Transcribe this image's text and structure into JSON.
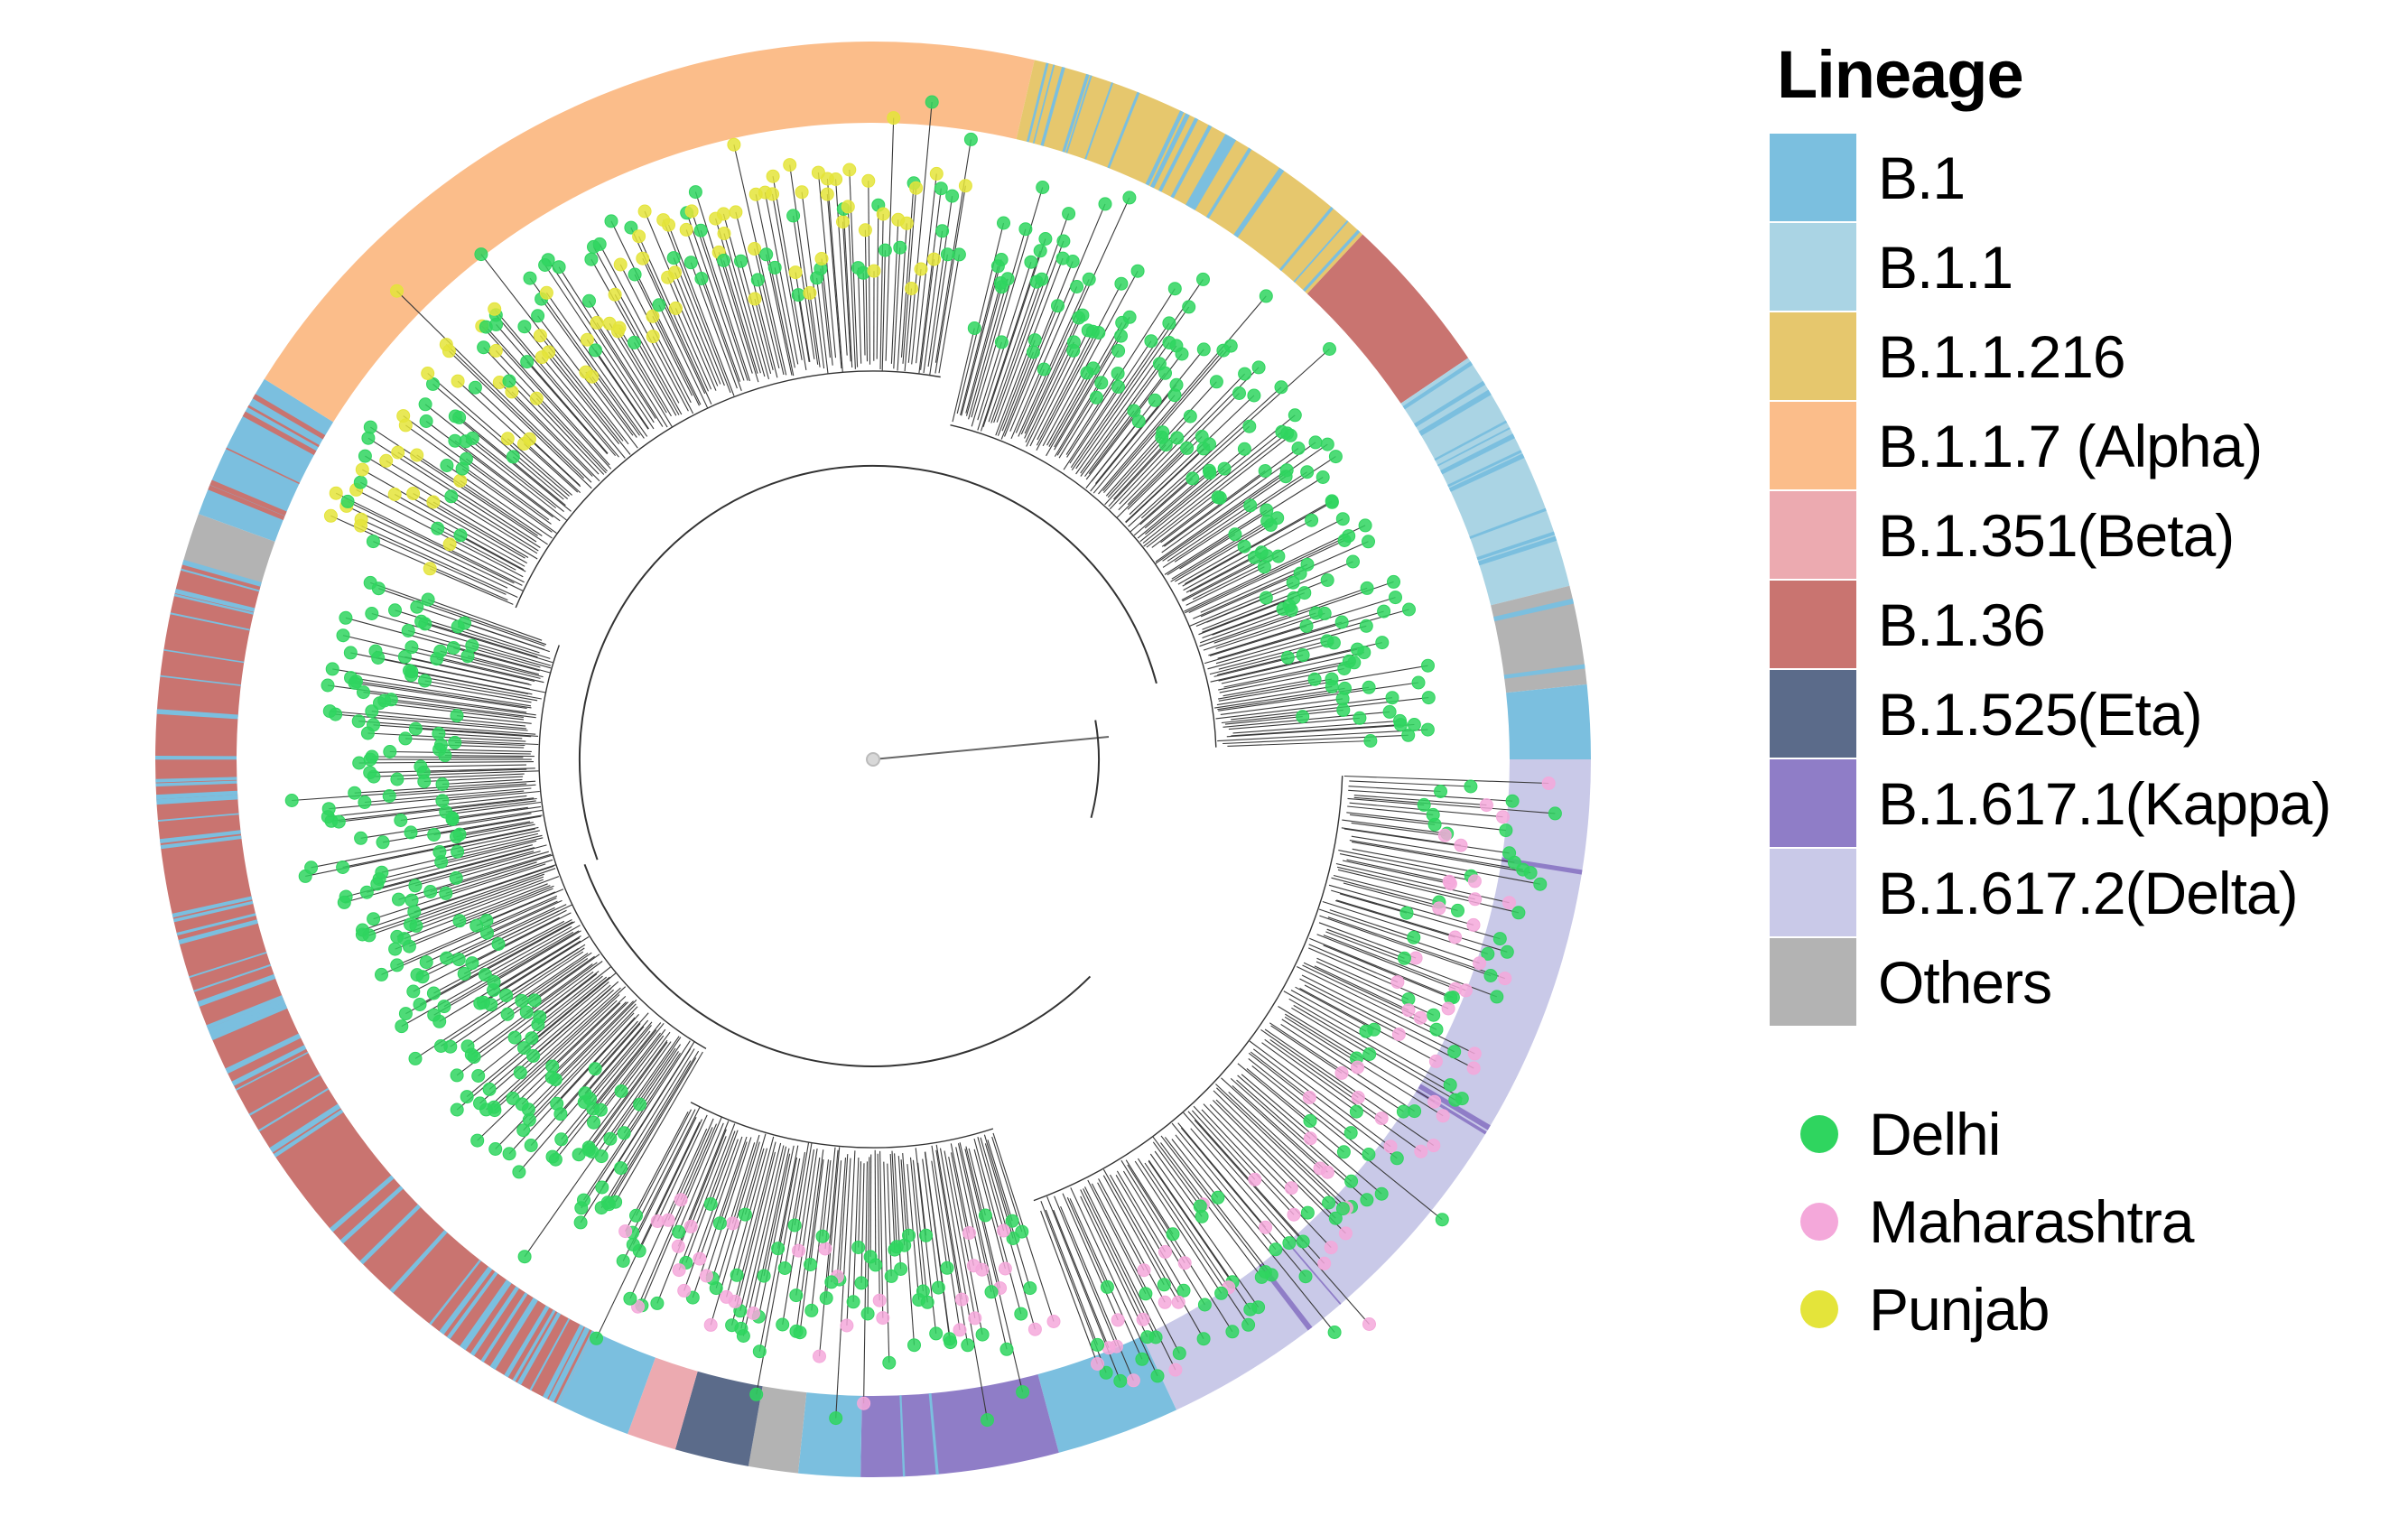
{
  "legend": {
    "title": "Lineage",
    "lineages": [
      {
        "label": "B.1",
        "color": "#7bbfdf"
      },
      {
        "label": "B.1.1",
        "color": "#aad4e4"
      },
      {
        "label": "B.1.1.216",
        "color": "#e6c76d"
      },
      {
        "label": "B.1.1.7 (Alpha)",
        "color": "#fbbd8a"
      },
      {
        "label": "B.1.351(Beta)",
        "color": "#ecaab0"
      },
      {
        "label": "B.1.36",
        "color": "#c97470"
      },
      {
        "label": "B.1.525(Eta)",
        "color": "#5b6b8a"
      },
      {
        "label": "B.1.617.1(Kappa)",
        "color": "#8f7dc7"
      },
      {
        "label": "B.1.617.2(Delta)",
        "color": "#c9c9e8"
      },
      {
        "label": "Others",
        "color": "#b3b3b3"
      }
    ],
    "regions": [
      {
        "label": "Delhi",
        "color": "#2fd55f"
      },
      {
        "label": "Maharashtra",
        "color": "#f4a8da"
      },
      {
        "label": "Punjab",
        "color": "#e4e43a"
      }
    ]
  }
}
